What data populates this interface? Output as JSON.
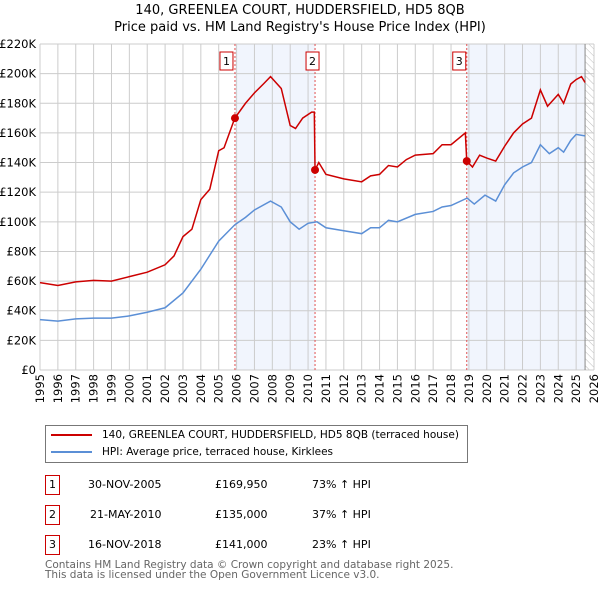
{
  "chart_data": {
    "type": "line",
    "title": "140, GREENLEA COURT, HUDDERSFIELD, HD5 8QB",
    "subtitle": "Price paid vs. HM Land Registry's House Price Index (HPI)",
    "xlim": [
      1995,
      2026
    ],
    "ylim": [
      0,
      220000
    ],
    "x_ticks": [
      "1995",
      "1996",
      "1997",
      "1998",
      "1999",
      "2000",
      "2001",
      "2002",
      "2003",
      "2004",
      "2005",
      "2006",
      "2007",
      "2008",
      "2009",
      "2010",
      "2011",
      "2012",
      "2013",
      "2014",
      "2015",
      "2016",
      "2017",
      "2018",
      "2019",
      "2020",
      "2021",
      "2022",
      "2023",
      "2024",
      "2025",
      "2026"
    ],
    "y_ticks": [
      "£0",
      "£20K",
      "£40K",
      "£60K",
      "£80K",
      "£100K",
      "£120K",
      "£140K",
      "£160K",
      "£180K",
      "£200K",
      "£220K"
    ],
    "grid": true,
    "series": [
      {
        "name": "140, GREENLEA COURT, HUDDERSFIELD, HD5 8QB (terraced house)",
        "color": "#cc0000",
        "x": [
          1995,
          1996,
          1997,
          1998,
          1999,
          2000,
          2001,
          2002,
          2002.5,
          2003,
          2003.5,
          2004,
          2004.5,
          2005,
          2005.3,
          2005.9,
          2006.5,
          2007,
          2007.5,
          2007.9,
          2008.5,
          2009,
          2009.3,
          2009.7,
          2010.2,
          2010.35,
          2010.39,
          2010.6,
          2011,
          2012,
          2013,
          2013.5,
          2014,
          2014.5,
          2015,
          2015.5,
          2016,
          2017,
          2017.5,
          2018,
          2018.8,
          2018.88,
          2019.2,
          2019.6,
          2020,
          2020.5,
          2021,
          2021.5,
          2022,
          2022.5,
          2023,
          2023.4,
          2024,
          2024.3,
          2024.7,
          2025,
          2025.3,
          2025.5
        ],
        "y": [
          59000,
          57000,
          59500,
          60500,
          60000,
          63000,
          66000,
          71000,
          77000,
          90000,
          95000,
          115000,
          122000,
          148000,
          150000,
          169950,
          180000,
          187000,
          193000,
          198000,
          190000,
          165000,
          163000,
          170000,
          174000,
          174000,
          135000,
          140000,
          132000,
          129000,
          127000,
          131000,
          132000,
          138000,
          137000,
          142000,
          145000,
          146000,
          152000,
          152000,
          160000,
          141000,
          137000,
          145000,
          143000,
          141000,
          151000,
          160000,
          166000,
          170000,
          189000,
          178000,
          186000,
          180000,
          193000,
          196000,
          198000,
          194000
        ]
      },
      {
        "name": "HPI: Average price, terraced house, Kirklees",
        "color": "#5b8fd6",
        "x": [
          1995,
          1996,
          1997,
          1998,
          1999,
          2000,
          2001,
          2002,
          2003,
          2004,
          2005,
          2005.9,
          2006.5,
          2007,
          2007.9,
          2008.5,
          2009,
          2009.5,
          2010,
          2010.5,
          2011,
          2012,
          2013,
          2013.5,
          2014,
          2014.5,
          2015,
          2016,
          2017,
          2017.5,
          2018,
          2018.9,
          2019.3,
          2019.9,
          2020.5,
          2021,
          2021.5,
          2022,
          2022.5,
          2023,
          2023.5,
          2024,
          2024.3,
          2024.7,
          2025,
          2025.5
        ],
        "y": [
          34000,
          33000,
          34500,
          35000,
          35000,
          36500,
          39000,
          42000,
          52000,
          68000,
          87000,
          98000,
          103000,
          108000,
          114000,
          110000,
          100000,
          95000,
          99000,
          100000,
          96000,
          94000,
          92000,
          96000,
          96000,
          101000,
          100000,
          105000,
          107000,
          110000,
          111000,
          116000,
          112000,
          118000,
          114000,
          125000,
          133000,
          137000,
          140000,
          152000,
          146000,
          150000,
          147000,
          155000,
          159000,
          158000
        ]
      }
    ],
    "sales": [
      {
        "label": "1",
        "x": 2005.91,
        "price": 169950,
        "date": "30-NOV-2005",
        "price_text": "£169,950",
        "hpi_text": "73% ↑ HPI"
      },
      {
        "label": "2",
        "x": 2010.39,
        "price": 135000,
        "date": "21-MAY-2010",
        "price_text": "£135,000",
        "hpi_text": "37% ↑ HPI"
      },
      {
        "label": "3",
        "x": 2018.88,
        "price": 141000,
        "date": "16-NOV-2018",
        "price_text": "£141,000",
        "hpi_text": "23% ↑ HPI"
      }
    ],
    "data_end": 2025.5
  },
  "footer": {
    "line1": "Contains HM Land Registry data © Crown copyright and database right 2025.",
    "line2": "This data is licensed under the Open Government Licence v3.0."
  }
}
